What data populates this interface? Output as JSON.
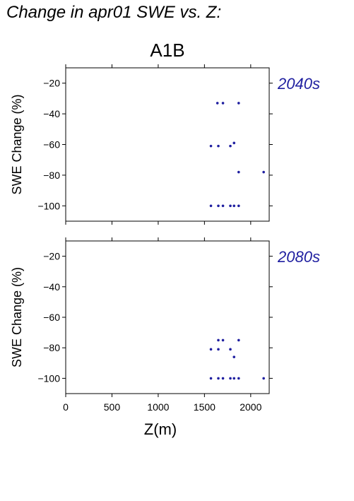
{
  "title": "Change in apr01 SWE vs. Z:",
  "scenario": "A1B",
  "colors": {
    "points": "#1f1fa0",
    "period_label": "#1f1fa0"
  },
  "chart_data": [
    {
      "type": "scatter",
      "period": "2040s",
      "ylabel": "SWE Change (%)",
      "xlabel": "",
      "xlim": [
        0,
        2200
      ],
      "ylim": [
        -110,
        -10
      ],
      "yticks": [
        -20,
        -40,
        -60,
        -80,
        -100
      ],
      "xticks": [],
      "points": [
        {
          "x": 1640,
          "y": -33
        },
        {
          "x": 1700,
          "y": -33
        },
        {
          "x": 1870,
          "y": -33
        },
        {
          "x": 1570,
          "y": -61
        },
        {
          "x": 1650,
          "y": -61
        },
        {
          "x": 1780,
          "y": -61
        },
        {
          "x": 1820,
          "y": -59
        },
        {
          "x": 1870,
          "y": -78
        },
        {
          "x": 2140,
          "y": -78
        },
        {
          "x": 1570,
          "y": -100
        },
        {
          "x": 1650,
          "y": -100
        },
        {
          "x": 1700,
          "y": -100
        },
        {
          "x": 1780,
          "y": -100
        },
        {
          "x": 1820,
          "y": -100
        },
        {
          "x": 1870,
          "y": -100
        }
      ]
    },
    {
      "type": "scatter",
      "period": "2080s",
      "ylabel": "SWE Change (%)",
      "xlabel": "Z(m)",
      "xlim": [
        0,
        2200
      ],
      "ylim": [
        -110,
        -10
      ],
      "yticks": [
        -20,
        -40,
        -60,
        -80,
        -100
      ],
      "xticks": [
        0,
        500,
        1000,
        1500,
        2000
      ],
      "points": [
        {
          "x": 1650,
          "y": -75
        },
        {
          "x": 1700,
          "y": -75
        },
        {
          "x": 1870,
          "y": -75
        },
        {
          "x": 1570,
          "y": -81
        },
        {
          "x": 1650,
          "y": -81
        },
        {
          "x": 1780,
          "y": -81
        },
        {
          "x": 1820,
          "y": -86
        },
        {
          "x": 1570,
          "y": -100
        },
        {
          "x": 1650,
          "y": -100
        },
        {
          "x": 1700,
          "y": -100
        },
        {
          "x": 1780,
          "y": -100
        },
        {
          "x": 1820,
          "y": -100
        },
        {
          "x": 1870,
          "y": -100
        },
        {
          "x": 2140,
          "y": -100
        }
      ]
    }
  ]
}
